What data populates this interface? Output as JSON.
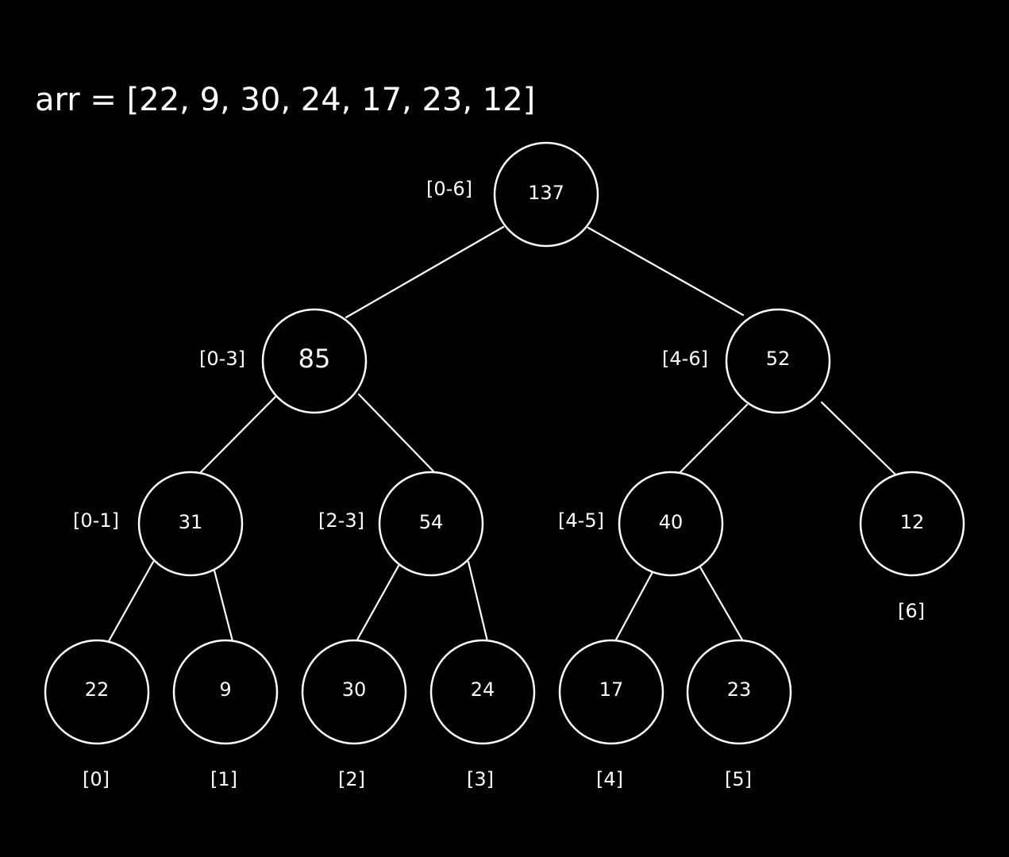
{
  "title": "arr = [22, 9, 30, 24, 17, 23, 12]",
  "colors": {
    "background": "#000000",
    "stroke": "#ffffff",
    "text": "#ffffff"
  },
  "nodes": {
    "root": {
      "value": "137",
      "range": "[0-6]"
    },
    "left": {
      "value": "85",
      "range": "[0-3]"
    },
    "right": {
      "value": "52",
      "range": "[4-6]"
    },
    "n01": {
      "value": "31",
      "range": "[0-1]"
    },
    "n23": {
      "value": "54",
      "range": "[2-3]"
    },
    "n45": {
      "value": "40",
      "range": "[4-5]"
    },
    "n6": {
      "value": "12",
      "range": "[6]"
    },
    "leaf0": {
      "value": "22",
      "range": "[0]"
    },
    "leaf1": {
      "value": "9",
      "range": "[1]"
    },
    "leaf2": {
      "value": "30",
      "range": "[2]"
    },
    "leaf3": {
      "value": "24",
      "range": "[3]"
    },
    "leaf4": {
      "value": "17",
      "range": "[4]"
    },
    "leaf5": {
      "value": "23",
      "range": "[5]"
    }
  }
}
